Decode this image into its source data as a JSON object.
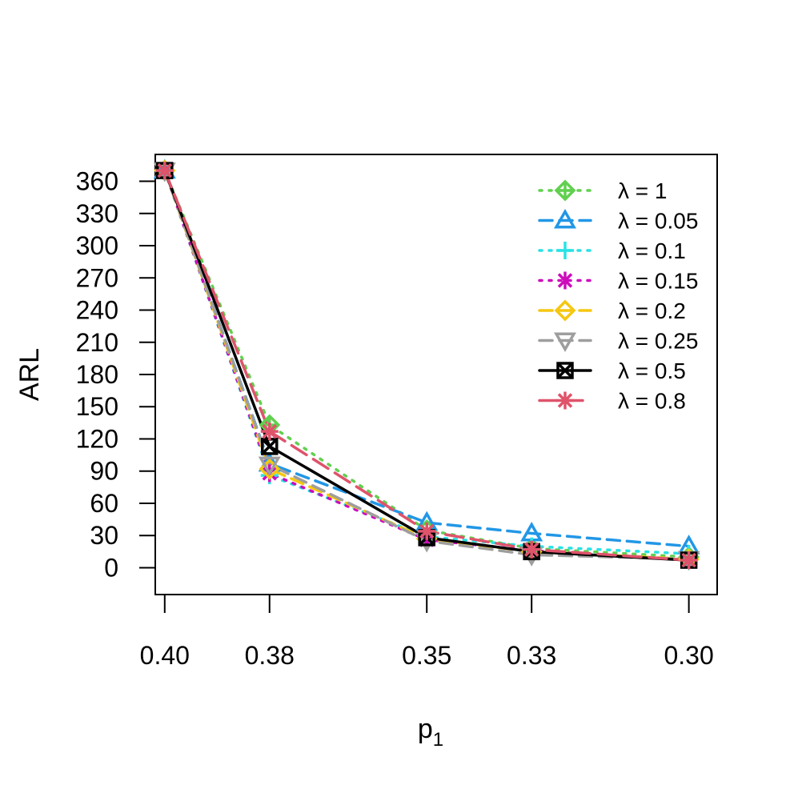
{
  "chart_data": {
    "type": "line",
    "title": "",
    "xlabel": "p",
    "xlabel_subscript": "1",
    "ylabel": "ARL",
    "x": [
      0.4,
      0.38,
      0.35,
      0.33,
      0.3
    ],
    "x_tick_labels": [
      "0.40",
      "0.38",
      "0.35",
      "0.33",
      "0.30"
    ],
    "xlim": [
      0.4018,
      0.2946
    ],
    "ylim": [
      -25,
      385
    ],
    "y_ticks": [
      0,
      30,
      60,
      90,
      120,
      150,
      180,
      210,
      240,
      270,
      300,
      330,
      360
    ],
    "grid": false,
    "legend_position": "top-right",
    "series": [
      {
        "name": "λ = 1",
        "color": "#61D04F",
        "dash": "dotted",
        "marker": "diamond-plus",
        "values": [
          370,
          133,
          35,
          18,
          10
        ]
      },
      {
        "name": "λ = 0.05",
        "color": "#2297E6",
        "dash": "dashed",
        "marker": "triangle-up",
        "values": [
          370,
          97,
          42,
          32,
          20
        ]
      },
      {
        "name": "λ = 0.1",
        "color": "#28E2E5",
        "dash": "dotted",
        "marker": "plus",
        "values": [
          370,
          86,
          29,
          20,
          13
        ]
      },
      {
        "name": "λ = 0.15",
        "color": "#CD0BBC",
        "dash": "dotted",
        "marker": "asterisk-x",
        "values": [
          370,
          88,
          26,
          16,
          7
        ]
      },
      {
        "name": "λ = 0.2",
        "color": "#F5C710",
        "dash": "dashed",
        "marker": "diamond",
        "values": [
          370,
          92,
          27,
          15,
          8
        ]
      },
      {
        "name": "λ = 0.25",
        "color": "#9E9E9E",
        "dash": "dashed",
        "marker": "triangle-down",
        "values": [
          370,
          96,
          25,
          12,
          8
        ]
      },
      {
        "name": "λ = 0.5",
        "color": "#000000",
        "dash": "solid",
        "marker": "square-x",
        "values": [
          370,
          113,
          28,
          15,
          7
        ]
      },
      {
        "name": "λ = 0.8",
        "color": "#DF536B",
        "dash": "longdash",
        "marker": "star",
        "values": [
          370,
          127,
          34,
          17,
          7
        ]
      }
    ]
  }
}
